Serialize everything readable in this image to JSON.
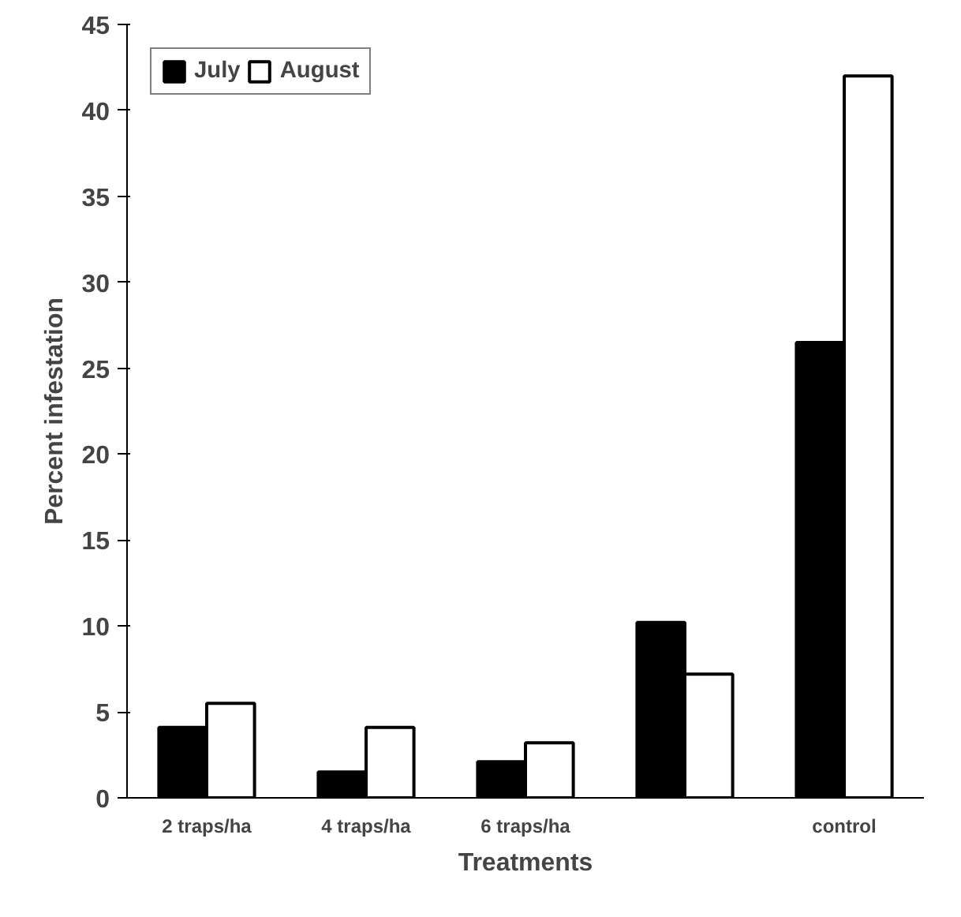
{
  "chart_data": {
    "type": "bar",
    "xlabel": "Treatments",
    "ylabel": "Percent infestation",
    "categories": [
      "2 traps/ha",
      "4 traps/ha",
      "6 traps/ha",
      null,
      "control"
    ],
    "series": [
      {
        "name": "July",
        "color": "#000000",
        "values": [
          4.1,
          1.5,
          2.1,
          10.2,
          26.5
        ]
      },
      {
        "name": "August",
        "color": "#ffffff",
        "values": [
          5.5,
          4.1,
          3.2,
          7.2,
          42.0
        ]
      }
    ],
    "ylim": [
      0,
      45
    ],
    "yticks": [
      0,
      5,
      10,
      15,
      20,
      25,
      30,
      35,
      40,
      45
    ],
    "grid": false,
    "legend": "top left"
  }
}
